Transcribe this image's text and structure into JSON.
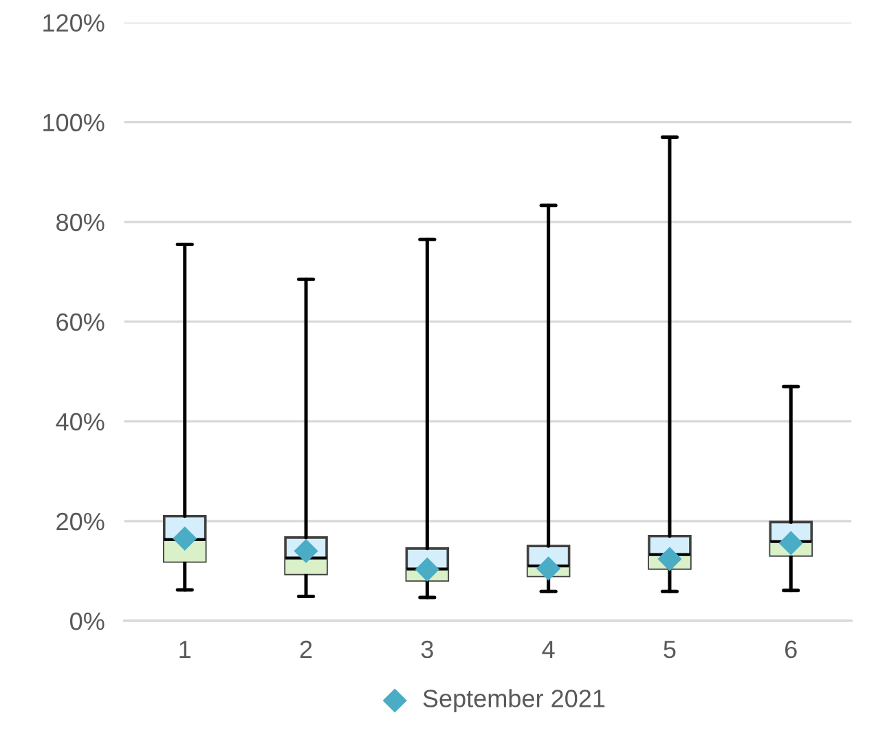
{
  "chart_data": {
    "type": "box",
    "categories": [
      "1",
      "2",
      "3",
      "4",
      "5",
      "6"
    ],
    "series": [
      {
        "color": "#d5eefc",
        "boxes": [
          {
            "low": 6.2,
            "q1": 11.9,
            "median": 16.3,
            "q3": 21.0,
            "high": 75.5
          },
          {
            "low": 4.9,
            "q1": 9.4,
            "median": 12.6,
            "q3": 16.7,
            "high": 68.5
          },
          {
            "low": 4.7,
            "q1": 8.1,
            "median": 10.4,
            "q3": 14.5,
            "high": 76.5
          },
          {
            "low": 5.9,
            "q1": 9.0,
            "median": 11.0,
            "q3": 15.0,
            "high": 83.3
          },
          {
            "low": 5.9,
            "q1": 10.5,
            "median": 13.3,
            "q3": 17.0,
            "high": 97.0
          },
          {
            "low": 6.1,
            "q1": 13.1,
            "median": 15.9,
            "q3": 19.8,
            "high": 47.0
          }
        ]
      },
      {
        "type": "scatter",
        "name": "September 2021",
        "color": "#4bacc6",
        "x": [
          "1",
          "2",
          "3",
          "4",
          "5",
          "6"
        ],
        "values": [
          16.5,
          14.0,
          10.3,
          10.5,
          12.4,
          15.6
        ]
      }
    ],
    "ylim": [
      0,
      120
    ],
    "yticks": [
      {
        "value": 0,
        "label": "0%"
      },
      {
        "value": 20,
        "label": "20%"
      },
      {
        "value": 40,
        "label": "40%"
      },
      {
        "value": 60,
        "label": "60%"
      },
      {
        "value": 80,
        "label": "80%"
      },
      {
        "value": 100,
        "label": "100%"
      },
      {
        "value": 120,
        "label": "120%"
      }
    ],
    "grid": "y",
    "legend": "bottom",
    "marker": "diamond"
  }
}
